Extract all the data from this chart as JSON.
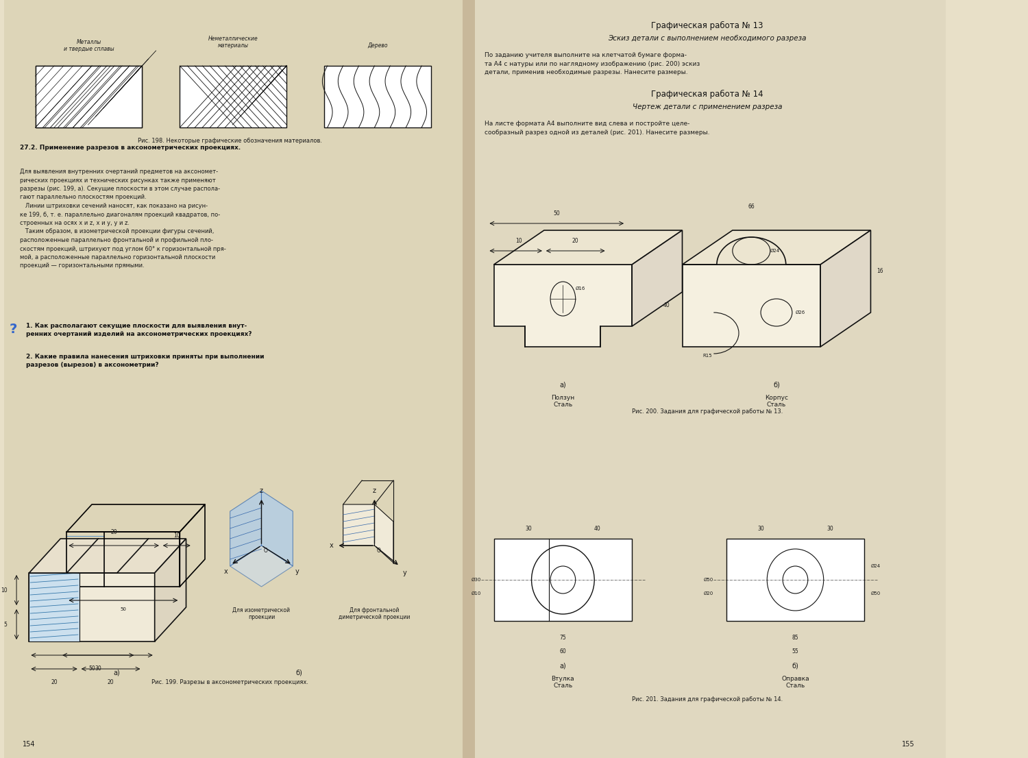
{
  "bg_color": "#e8e0c8",
  "left_bg": "#ddd5b8",
  "right_bg": "#e0d8c0",
  "page_width": 15.0,
  "page_height": 11.06,
  "left_page_number": "154",
  "right_page_number": "155",
  "title_right_1": "Графическая работа № 13",
  "subtitle_right_1": "Эскиз детали с выполнением необходимого разреза",
  "body_right_1": "По заданию учителя выполните на клетчатой бумаге форма-\nта А4 с натуры или по наглядному изображению (рис. 200) эскиз\nдетали, применив необходимые разрезы. Нанесите размеры.",
  "title_right_2": "Графическая работа № 14",
  "subtitle_right_2": "Чертеж детали с применением разреза",
  "body_right_2": "На листе формата А4 выполните вид слева и постройте целе-\nсообразный разрез одной из деталей (рис. 201). Нанесите размеры.",
  "section_27_title": "27.2. Применение разрезов в аксонометрических проекциях.",
  "section_27_body": "Для выявления внутренних очертаний предметов на аксономет-\nрических проекциях и технических рисунках также применяют\nразрезы (рис. 199, а). Секущие плоскости в этом случае распола-\nгают параллельно плоскостям проекций.\n   Линии штриховки сечений наносят, как показано на рисун-\nке 199, б, т. е. параллельно диагоналям проекций квадратов, по-\nстроенных на осях х и z, х и у, у и z.\n   Таким образом, в изометрической проекции фигуры сечений,\nрасположенные параллельно фронтальной и профильной пло-\nскостям проекций, штрихуют под углом 60° к горизонтальной пря-\nмой, а расположенные параллельно горизонтальной плоскости\nпроекций — горизонтальными прямыми.",
  "question_1": "1. Как располагают секущие плоскости для выявления внут-\nренних очертаний изделий на аксонометрических проекциях?",
  "question_2": "2. Какие правила нанесения штриховки приняты при выполнении\nразрезов (вырезов) в аксонометрии?",
  "fig198_caption": "Рис. 198. Некоторые графические обозначения материалов.",
  "fig199_caption": "Рис. 199. Разрезы в аксонометрических проекциях.",
  "fig200_caption": "Рис. 200. Задания для графической работы № 13.",
  "fig201_caption": "Рис. 201. Задания для графической работы № 14.",
  "label_metals": "Металлы\nи твердые сплавы",
  "label_nonmetal": "Неметаллические\nматериалы",
  "label_wood": "Дерево",
  "label_a_left": "а)",
  "label_b_left": "б)",
  "label_isometric": "Для изометрической\nпроекции",
  "label_frontal": "Для фронтальной\nдиметрической проекции",
  "label_ползун": "Ползун\nСталь",
  "label_а_right": "а)",
  "label_корпус": "Корпус\nСталь",
  "label_б_right": "б)",
  "label_втулка": "Втулка\nСталь",
  "label_оправка": "Оправка\nСталь"
}
